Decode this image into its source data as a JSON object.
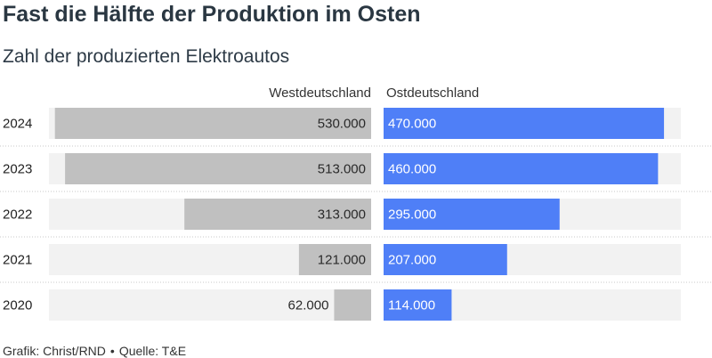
{
  "title": "Fast die Hälfte der Produktion im Osten",
  "subtitle": "Zahl der produzierten Elektroautos",
  "footer": {
    "credit": "Grafik: Christ/RND",
    "separator": "•",
    "source": "Quelle: T&E"
  },
  "colors": {
    "west": "#c0c0c0",
    "east": "#4f7ff7",
    "track": "#f2f2f2",
    "divider": "#c8c8c8"
  },
  "chart_data": {
    "type": "bar",
    "orientation": "horizontal",
    "layout": "butterfly",
    "categories": [
      "2024",
      "2023",
      "2022",
      "2021",
      "2020"
    ],
    "series": [
      {
        "name": "Westdeutschland",
        "values": [
          530000,
          513000,
          313000,
          121000,
          62000
        ],
        "labels": [
          "530.000",
          "513.000",
          "313.000",
          "121.000",
          "62.000"
        ]
      },
      {
        "name": "Ostdeutschland",
        "values": [
          470000,
          460000,
          295000,
          207000,
          114000
        ],
        "labels": [
          "470.000",
          "460.000",
          "295.000",
          "207.000",
          "114.000"
        ]
      }
    ],
    "xlim": [
      0,
      540000
    ],
    "grid": false,
    "legend": "column headers above bars"
  }
}
